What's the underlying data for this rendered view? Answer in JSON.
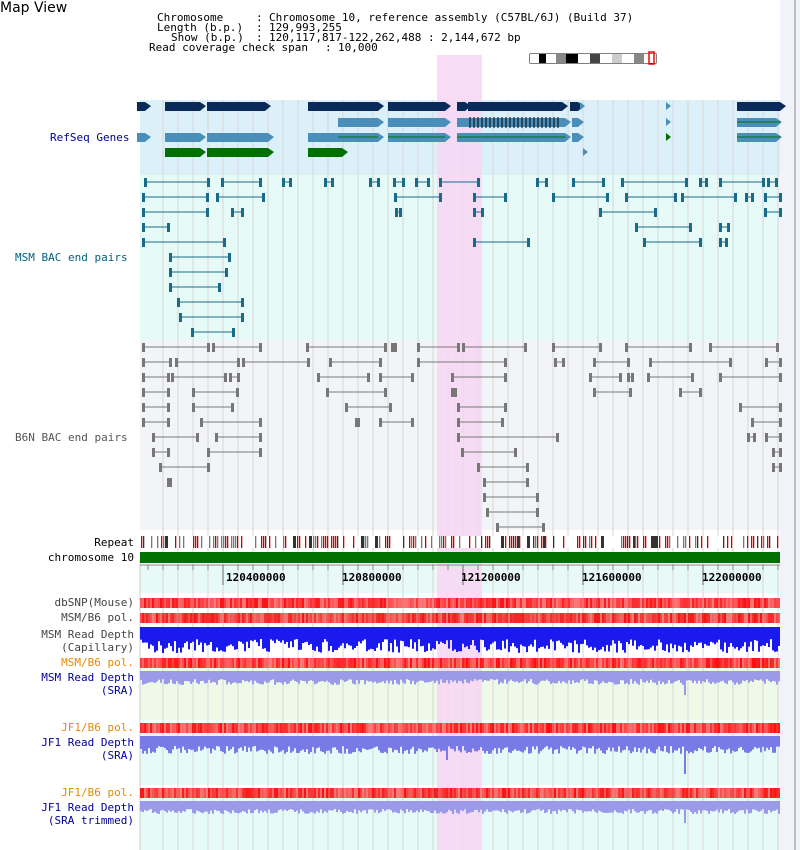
{
  "page": {
    "title": "Map View"
  },
  "info": {
    "chromosome_key": "Chromosome",
    "chromosome_value": "Chromosome 10, reference assembly (C57BL/6J) (Build 37)",
    "length_key": "Length (b.p.)",
    "length_value": "129,993,255",
    "show_key": "Show (b.p.)",
    "show_value": "120,117,817-122,262,488 : 2,144,672 bp",
    "coverage_key": "Read coverage check span",
    "coverage_value": "10,000"
  },
  "tracks": {
    "refseq": "RefSeq Genes",
    "msm_bac": "MSM BAC end pairs",
    "b6n_bac": "B6N BAC end pairs",
    "repeat": "Repeat",
    "chromosome": "chromosome 10",
    "dbsnp": "dbSNP(Mouse)",
    "msm_b6_pol_1": "MSM/B6 pol.",
    "msm_read_depth_cap_1": "MSM Read Depth",
    "msm_read_depth_cap_2": "(Capillary)",
    "msm_b6_pol_2": "MSM/B6 pol.",
    "msm_read_depth_sra_1": "MSM Read Depth",
    "msm_read_depth_sra_2": "(SRA)",
    "jf1_b6_pol_1": "JF1/B6 pol.",
    "jf1_read_depth_sra_1": "JF1 Read Depth",
    "jf1_read_depth_sra_2": "(SRA)",
    "jf1_b6_pol_2": "JF1/B6 pol.",
    "jf1_read_depth_trim_1": "JF1 Read Depth",
    "jf1_read_depth_trim_2": "(SRA trimmed)"
  },
  "axis": {
    "ticks": [
      "120400000",
      "120800000",
      "121200000",
      "121600000",
      "122000000"
    ]
  },
  "colors": {
    "dark_blue": "#0a2a5a",
    "steel_blue": "#4a8fb9",
    "green": "#007000",
    "highlight": "#f7d6f3",
    "label_blue": "#000099",
    "label_teal": "#006080",
    "label_orange": "#e88a00"
  }
}
